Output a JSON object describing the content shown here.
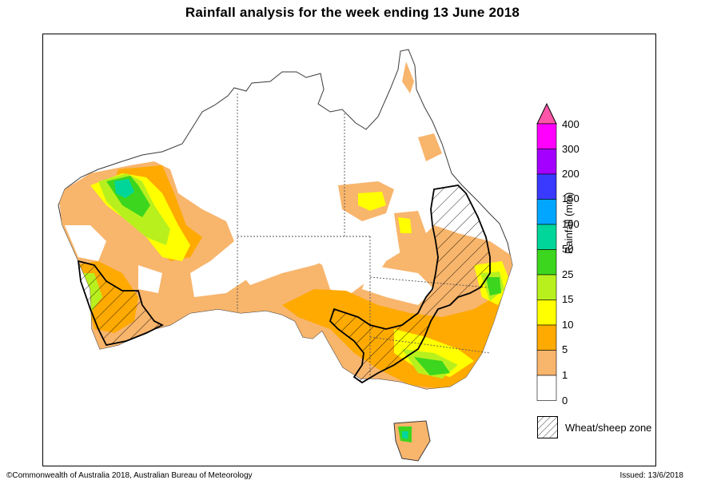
{
  "title": "Rainfall analysis for the week ending 13 June 2018",
  "legend": {
    "title": "Rainfall (mm)",
    "ticks": [
      "400",
      "300",
      "200",
      "150",
      "100",
      "50",
      "25",
      "15",
      "10",
      "5",
      "1",
      "0"
    ],
    "colors": [
      "#ff55a8",
      "#ff00ff",
      "#a400ff",
      "#3a3aff",
      "#00a6ff",
      "#00d69a",
      "#3cd61e",
      "#b8f01e",
      "#ffff00",
      "#ffaa00",
      "#f8b56c",
      "#ffffff"
    ],
    "zone_label": "Wheat/sheep zone"
  },
  "footer": {
    "copyright": "©Commonwealth of Australia 2018, Australian Bureau of Meteorology",
    "issued": "Issued: 13/6/2018"
  }
}
